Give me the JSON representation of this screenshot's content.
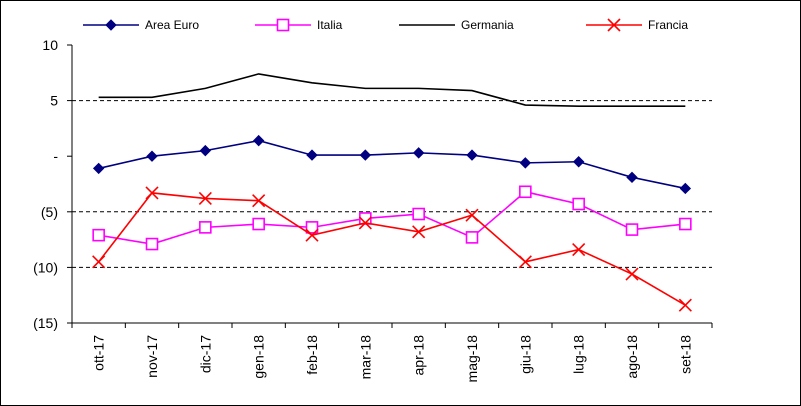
{
  "chart_data": {
    "type": "line",
    "categories": [
      "ott-17",
      "nov-17",
      "dic-17",
      "gen-18",
      "feb-18",
      "mar-18",
      "apr-18",
      "mag-18",
      "giu-18",
      "lug-18",
      "ago-18",
      "set-18"
    ],
    "ylim": [
      -15,
      10
    ],
    "yticks": [
      10,
      5,
      0,
      -5,
      -10,
      -15
    ],
    "ytick_labels": [
      "10",
      "5",
      "-",
      "(5)",
      "(10)",
      "(15)"
    ],
    "dashed_gridlines_at": [
      5,
      -5,
      -10
    ],
    "legend_position": "top",
    "series": [
      {
        "name": "Area Euro",
        "color": "#000080",
        "marker": "diamond",
        "values": [
          -1.1,
          0.0,
          0.5,
          1.4,
          0.1,
          0.1,
          0.3,
          0.1,
          -0.6,
          -0.5,
          -1.9,
          -2.9
        ]
      },
      {
        "name": "Italia",
        "color": "#ff00ff",
        "marker": "square",
        "values": [
          -7.1,
          -7.9,
          -6.4,
          -6.1,
          -6.4,
          -5.6,
          -5.2,
          -7.3,
          -3.2,
          -4.3,
          -6.6,
          -6.1
        ]
      },
      {
        "name": "Germania",
        "color": "#000000",
        "marker": "none",
        "values": [
          5.3,
          5.3,
          6.1,
          7.4,
          6.6,
          6.1,
          6.1,
          5.9,
          4.6,
          4.5,
          4.5,
          4.5
        ]
      },
      {
        "name": "Francia",
        "color": "#ff0000",
        "marker": "x",
        "values": [
          -9.5,
          -3.3,
          -3.8,
          -4.0,
          -7.1,
          -6.0,
          -6.8,
          -5.3,
          -9.5,
          -8.4,
          -10.6,
          -13.4
        ]
      }
    ]
  }
}
